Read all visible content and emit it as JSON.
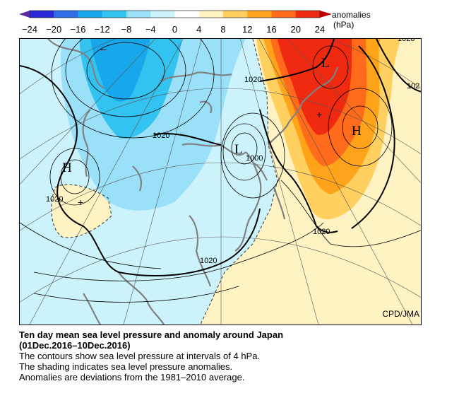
{
  "colorbar": {
    "ticks": [
      "−24",
      "−20",
      "−16",
      "−12",
      "−8",
      "−4",
      "0",
      "4",
      "8",
      "12",
      "16",
      "20",
      "24"
    ],
    "unit_label": "anomalies",
    "unit": "(hPa)",
    "colors": [
      "#2a2ad8",
      "#2f6ee6",
      "#17a8ec",
      "#33c3f0",
      "#99e0f8",
      "#ccf2fb",
      "#ffffff",
      "#fff3c4",
      "#ffd060",
      "#ffa41a",
      "#ff6b1a",
      "#f02a10"
    ]
  },
  "map": {
    "credit": "CPD/JMA",
    "contour_labels": [
      "1020",
      "1020",
      "1020",
      "1020",
      "1020",
      "1000",
      "1020",
      "102"
    ],
    "centers": [
      "H",
      "H",
      "L",
      "L"
    ],
    "highlight_colors": {
      "contour": "#000000",
      "coastline": "#808080",
      "grid": "#555555"
    }
  },
  "caption": {
    "title": "Ten day mean sea level pressure and anomaly around Japan",
    "period": "(01Dec.2016–10Dec.2016)",
    "lines": [
      "The contours show sea level pressure at intervals of 4 hPa.",
      "The shading indicates sea level pressure anomalies.",
      "Anomalies are deviations from the 1981–2010 average."
    ]
  }
}
